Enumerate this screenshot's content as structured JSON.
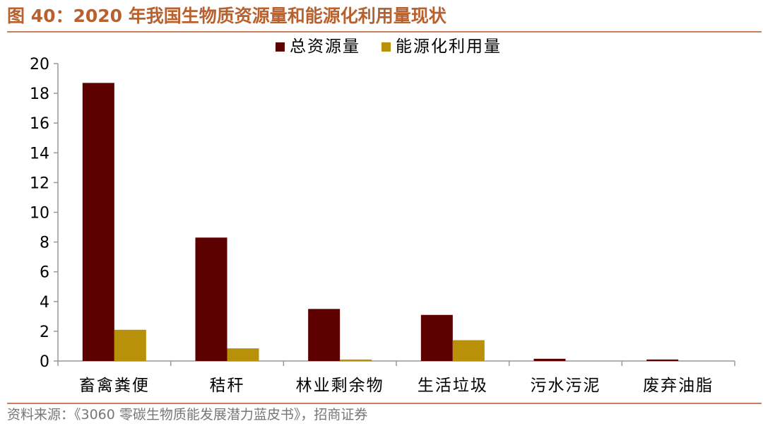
{
  "figure": {
    "title": "图 40：2020 年我国生物质资源量和能源化利用量现状",
    "source": "资料来源：《3060 零碳生物质能发展潜力蓝皮书》，招商证券"
  },
  "colors": {
    "total": "#5c0000",
    "energy": "#b8900a",
    "axis": "#999999",
    "title": "#b8602e"
  },
  "chart_data": {
    "type": "bar",
    "categories": [
      "畜禽粪便",
      "秸秆",
      "林业剩余物",
      "生活垃圾",
      "污水污泥",
      "废弃油脂"
    ],
    "series": [
      {
        "name": "总资源量",
        "values": [
          18.7,
          8.3,
          3.5,
          3.1,
          0.15,
          0.1
        ]
      },
      {
        "name": "能源化利用量",
        "values": [
          2.1,
          0.85,
          0.1,
          1.4,
          0.0,
          0.0
        ]
      }
    ],
    "yticks": [
      "0",
      "2",
      "4",
      "6",
      "8",
      "10",
      "12",
      "14",
      "16",
      "18",
      "20"
    ],
    "ylim": [
      0,
      20
    ],
    "xlabel": "",
    "ylabel": "",
    "grid": false,
    "legend_position": "top"
  }
}
